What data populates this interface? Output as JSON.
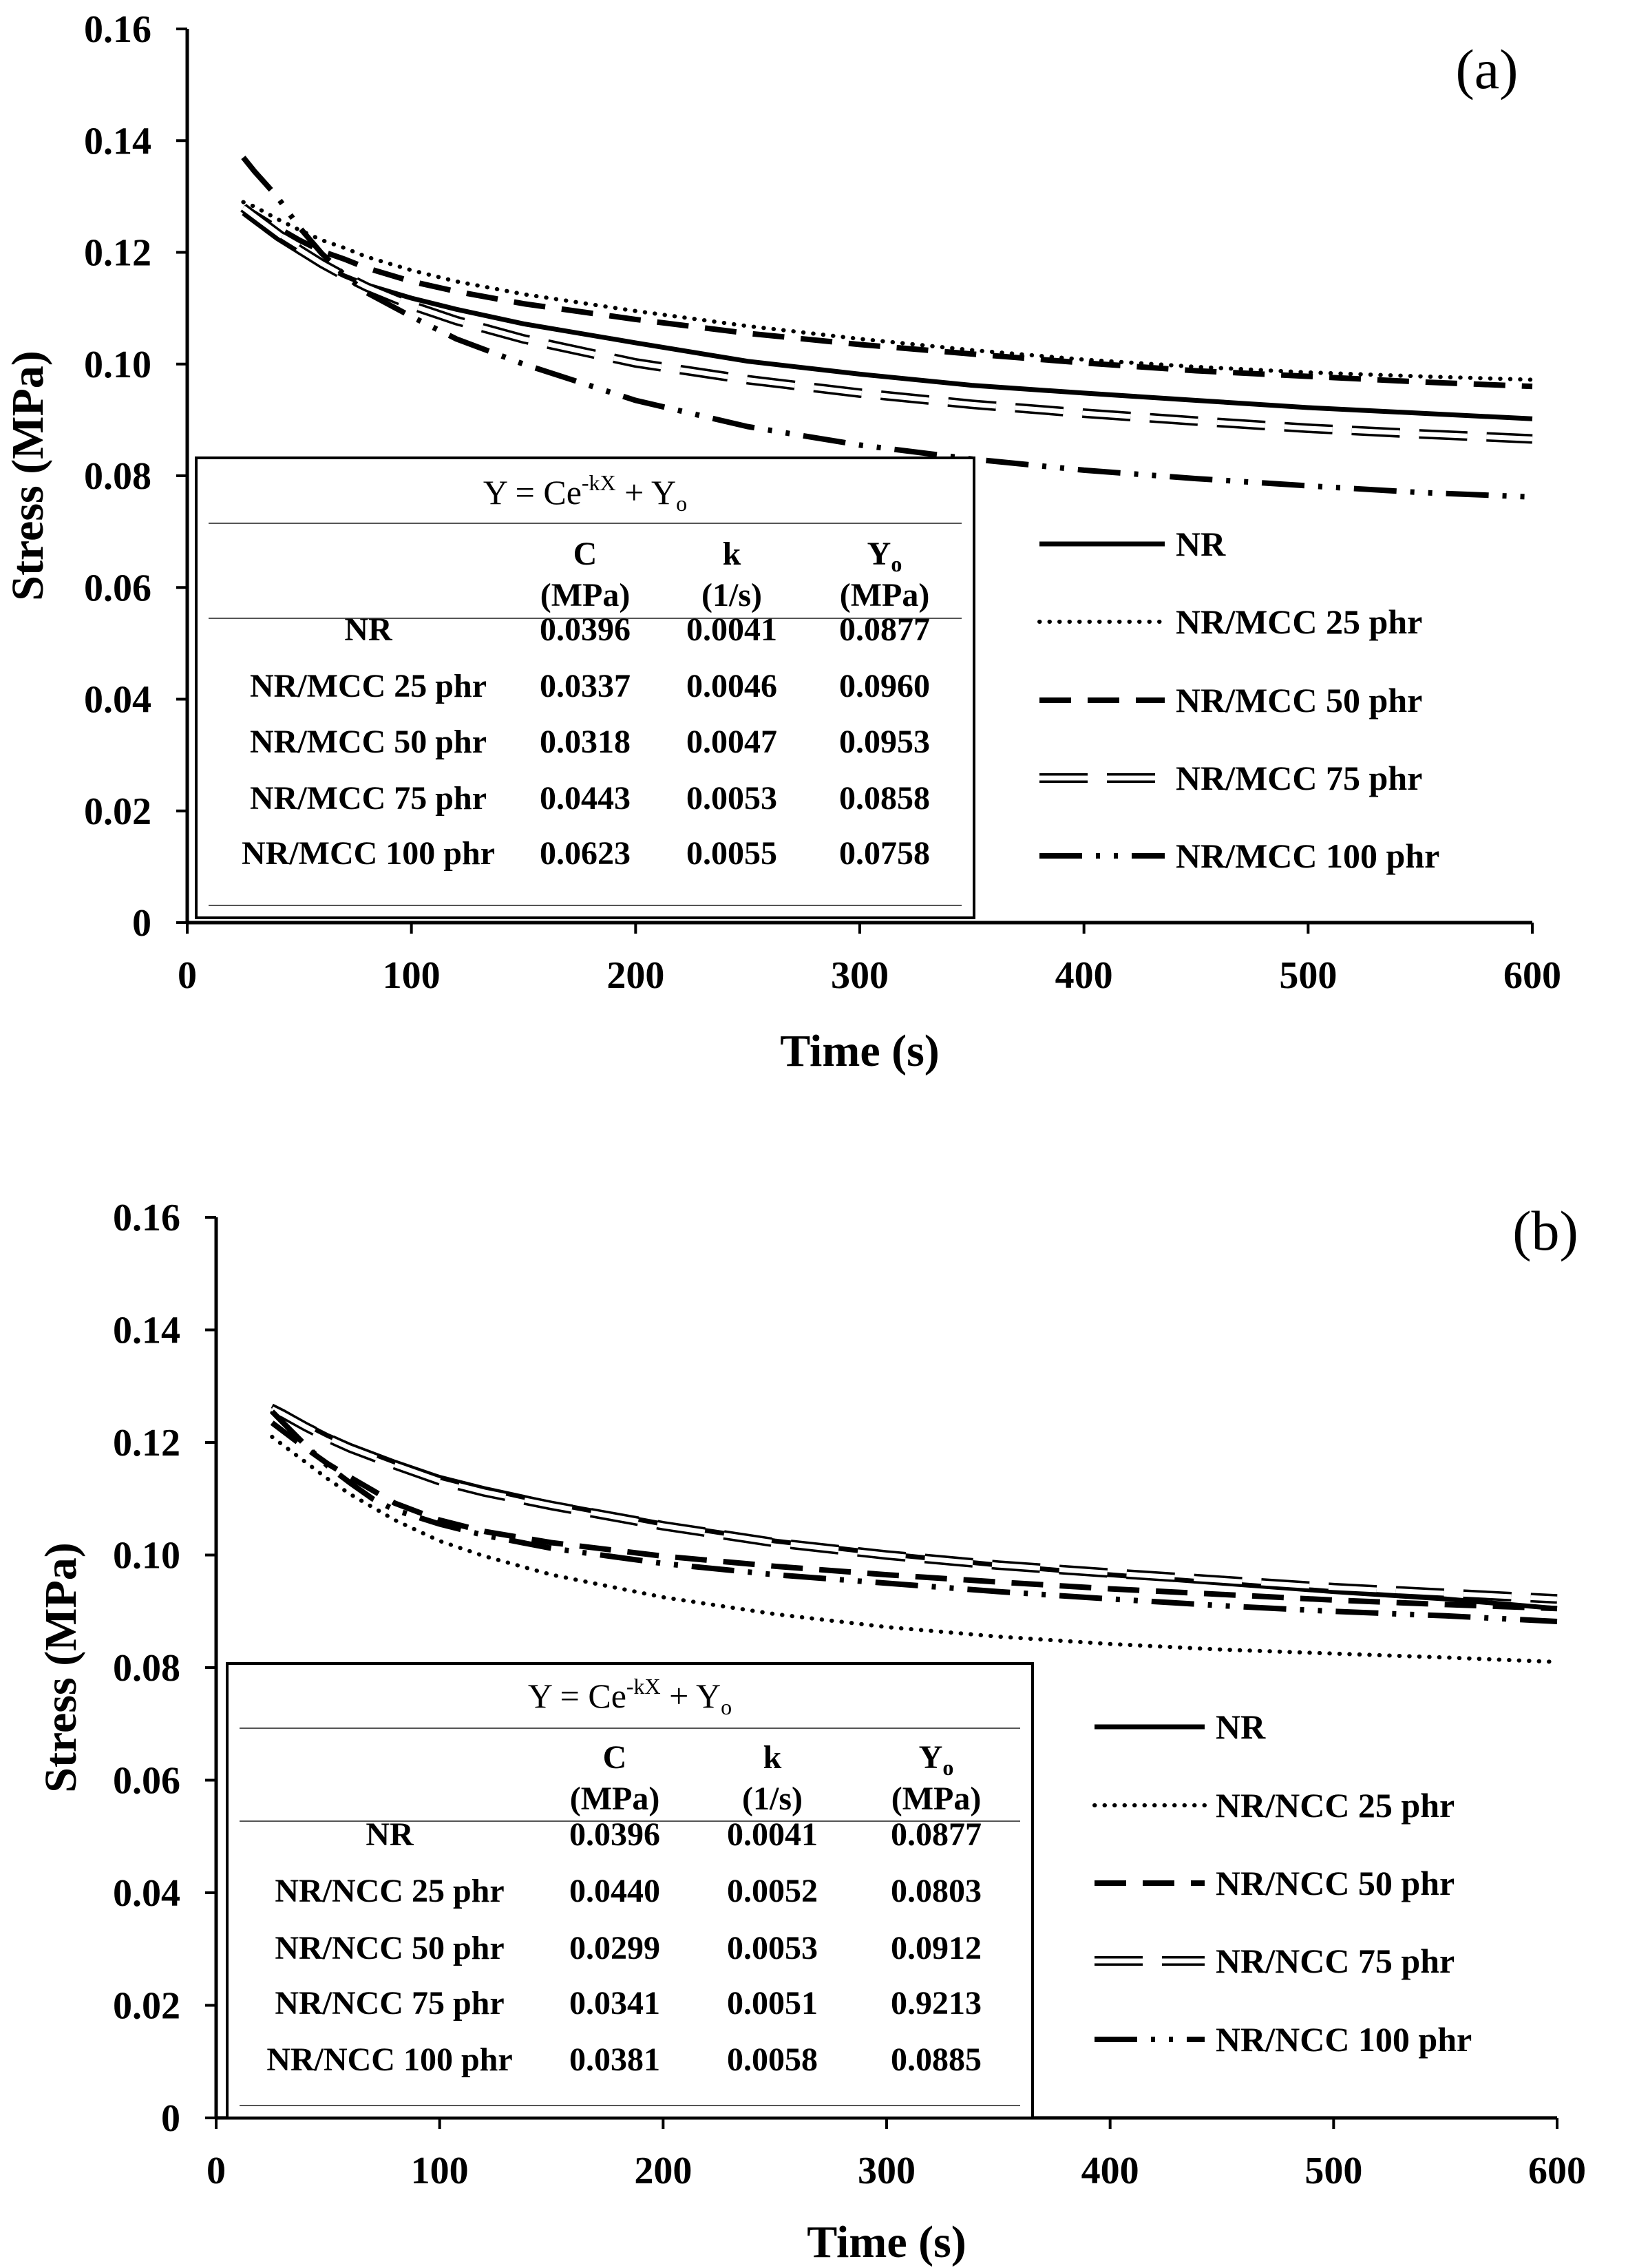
{
  "figure": {
    "panels": [
      {
        "tag": "(a)",
        "table_title": {
          "main": "Y = Ce",
          "sup": "-kX",
          "rest": " + Y",
          "sub": "o"
        },
        "table_headers": [
          {
            "line1": "C",
            "line1_sub": "",
            "line2": "(MPa)"
          },
          {
            "line1": "k",
            "line1_sub": "",
            "line2": "(1/s)"
          },
          {
            "line1": "Y",
            "line1_sub": "o",
            "line2": "(MPa)"
          }
        ],
        "table_rows": [
          {
            "name": "NR",
            "C": "0.0396",
            "k": "0.0041",
            "Y0": "0.0877"
          },
          {
            "name": "NR/MCC 25 phr",
            "C": "0.0337",
            "k": "0.0046",
            "Y0": "0.0960"
          },
          {
            "name": "NR/MCC 50 phr",
            "C": "0.0318",
            "k": "0.0047",
            "Y0": "0.0953"
          },
          {
            "name": "NR/MCC 75 phr",
            "C": "0.0443",
            "k": "0.0053",
            "Y0": "0.0858"
          },
          {
            "name": "NR/MCC 100 phr",
            "C": "0.0623",
            "k": "0.0055",
            "Y0": "0.0758"
          }
        ]
      },
      {
        "tag": "(b)",
        "table_title": {
          "main": "Y = Ce",
          "sup": "-kX",
          "rest": " + Y",
          "sub": "o"
        },
        "table_headers": [
          {
            "line1": "C",
            "line1_sub": "",
            "line2": "(MPa)"
          },
          {
            "line1": "k",
            "line1_sub": "",
            "line2": "(1/s)"
          },
          {
            "line1": "Y",
            "line1_sub": "o",
            "line2": "(MPa)"
          }
        ],
        "table_rows": [
          {
            "name": "NR",
            "C": "0.0396",
            "k": "0.0041",
            "Y0": "0.0877"
          },
          {
            "name": "NR/NCC 25 phr",
            "C": "0.0440",
            "k": "0.0052",
            "Y0": "0.0803"
          },
          {
            "name": "NR/NCC 50 phr",
            "C": "0.0299",
            "k": "0.0053",
            "Y0": "0.0912"
          },
          {
            "name": "NR/NCC 75 phr",
            "C": "0.0341",
            "k": "0.0051",
            "Y0": "0.9213"
          },
          {
            "name": "NR/NCC 100 phr",
            "C": "0.0381",
            "k": "0.0058",
            "Y0": "0.0885"
          }
        ]
      }
    ]
  },
  "chart_data": [
    {
      "type": "line",
      "panel": "(a)",
      "xlabel": "Time (s)",
      "ylabel": "Stress (MPa)",
      "xlim": [
        0,
        600
      ],
      "ylim": [
        0,
        0.16
      ],
      "xticks": [
        "0",
        "100",
        "200",
        "300",
        "400",
        "500",
        "600"
      ],
      "yticks": [
        "0",
        "0.02",
        "0.04",
        "0.06",
        "0.08",
        "0.10",
        "0.12",
        "0.14",
        "0.16"
      ],
      "legend_position": "right",
      "x": [
        25,
        30,
        40,
        50,
        60,
        70,
        80,
        100,
        120,
        150,
        200,
        250,
        300,
        350,
        400,
        450,
        500,
        550,
        600
      ],
      "series": [
        {
          "name": "NR",
          "style": "solid",
          "values": [
            0.127,
            0.1255,
            0.1225,
            0.12,
            0.1178,
            0.1158,
            0.1142,
            0.1118,
            0.1098,
            0.1072,
            0.1038,
            0.1005,
            0.0982,
            0.0962,
            0.0948,
            0.0935,
            0.0922,
            0.0912,
            0.0902
          ]
        },
        {
          "name": "NR/MCC 25 phr",
          "style": "dotted",
          "values": [
            0.129,
            0.1282,
            0.126,
            0.124,
            0.1222,
            0.1208,
            0.1192,
            0.1168,
            0.1148,
            0.1125,
            0.1095,
            0.1068,
            0.1045,
            0.1025,
            0.1008,
            0.0995,
            0.0985,
            0.0978,
            0.0972
          ]
        },
        {
          "name": "NR/MCC 50 phr",
          "style": "dashed",
          "values": [
            0.128,
            0.127,
            0.1245,
            0.1222,
            0.1202,
            0.1188,
            0.1172,
            0.1148,
            0.113,
            0.1108,
            0.108,
            0.1055,
            0.1035,
            0.1018,
            0.1002,
            0.0988,
            0.0978,
            0.0968,
            0.096
          ]
        },
        {
          "name": "NR/MCC 75 phr",
          "style": "double",
          "values": [
            0.128,
            0.1265,
            0.1235,
            0.1205,
            0.118,
            0.1158,
            0.1138,
            0.1105,
            0.1078,
            0.1045,
            0.1002,
            0.0972,
            0.0948,
            0.0928,
            0.0912,
            0.0898,
            0.0885,
            0.0875,
            0.0866
          ]
        },
        {
          "name": "NR/MCC 100 phr",
          "style": "dashdotdot",
          "values": [
            0.137,
            0.1345,
            0.13,
            0.1245,
            0.1198,
            0.116,
            0.1128,
            0.1085,
            0.1045,
            0.1,
            0.0935,
            0.0888,
            0.0855,
            0.083,
            0.081,
            0.0795,
            0.0782,
            0.077,
            0.0762
          ]
        }
      ]
    },
    {
      "type": "line",
      "panel": "(b)",
      "xlabel": "Time (s)",
      "ylabel": "Stress (MPa)",
      "xlim": [
        0,
        600
      ],
      "ylim": [
        0,
        0.16
      ],
      "xticks": [
        "0",
        "100",
        "200",
        "300",
        "400",
        "500",
        "600"
      ],
      "yticks": [
        "0",
        "0.02",
        "0.04",
        "0.06",
        "0.08",
        "0.10",
        "0.12",
        "0.14",
        "0.16"
      ],
      "legend_position": "right",
      "x": [
        25,
        30,
        40,
        50,
        60,
        70,
        80,
        100,
        120,
        150,
        200,
        250,
        300,
        350,
        400,
        450,
        500,
        550,
        600
      ],
      "series": [
        {
          "name": "NR",
          "style": "solid",
          "values": [
            0.1265,
            0.1255,
            0.1232,
            0.1212,
            0.1195,
            0.118,
            0.1165,
            0.1138,
            0.1118,
            0.1092,
            0.1055,
            0.1025,
            0.1002,
            0.0982,
            0.0965,
            0.095,
            0.0935,
            0.0922,
            0.0905
          ]
        },
        {
          "name": "NR/NCC 25 phr",
          "style": "dotted",
          "values": [
            0.121,
            0.1195,
            0.1165,
            0.1135,
            0.1108,
            0.1085,
            0.1062,
            0.1025,
            0.0998,
            0.0965,
            0.0925,
            0.0895,
            0.0872,
            0.0855,
            0.0842,
            0.0832,
            0.0825,
            0.0818,
            0.081
          ]
        },
        {
          "name": "NR/NCC 50 phr",
          "style": "dashed",
          "values": [
            0.1235,
            0.122,
            0.119,
            0.1162,
            0.1138,
            0.1115,
            0.1092,
            0.1062,
            0.1042,
            0.1022,
            0.0998,
            0.098,
            0.0965,
            0.0952,
            0.094,
            0.093,
            0.092,
            0.0912,
            0.0905
          ]
        },
        {
          "name": "NR/NCC 75 phr",
          "style": "double",
          "values": [
            0.126,
            0.125,
            0.1228,
            0.1208,
            0.119,
            0.1175,
            0.116,
            0.1132,
            0.1112,
            0.1088,
            0.1052,
            0.1022,
            0.1,
            0.0982,
            0.0968,
            0.0955,
            0.0942,
            0.0932,
            0.0922
          ]
        },
        {
          "name": "NR/NCC 100 phr",
          "style": "dashdotdot",
          "values": [
            0.1255,
            0.1235,
            0.1195,
            0.1158,
            0.1128,
            0.11,
            0.108,
            0.1055,
            0.1035,
            0.1012,
            0.0985,
            0.0965,
            0.095,
            0.0935,
            0.0922,
            0.091,
            0.09,
            0.0892,
            0.0882
          ]
        }
      ]
    }
  ]
}
